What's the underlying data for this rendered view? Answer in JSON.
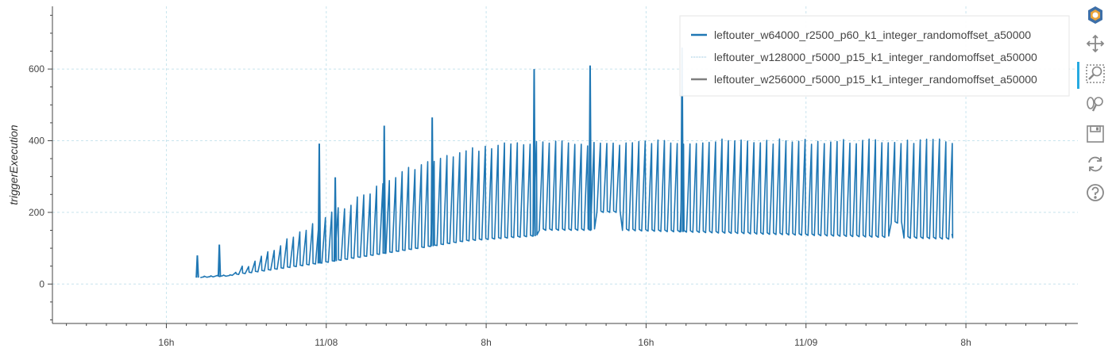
{
  "chart_data": {
    "type": "line",
    "ylabel": "triggerExecution",
    "xlabel": "",
    "x_tick_labels": [
      "16h",
      "11/08",
      "8h",
      "16h",
      "11/09",
      "8h"
    ],
    "x_ticks_hours": [
      16,
      24,
      32,
      40,
      48,
      56
    ],
    "xlim_hours": [
      10.3,
      61.6
    ],
    "y_ticks": [
      0,
      200,
      400,
      600
    ],
    "ylim": [
      -110,
      775
    ],
    "grid": true,
    "legend_position": "top-right",
    "series": [
      {
        "name": "leftouter_w64000_r2500_p60_k1_integer_randomoffset_a50000",
        "color": "#1f77b4",
        "style": "solid",
        "data_range_hours": [
          17.7,
          55.3
        ],
        "oscillation_period_hours": 0.32,
        "baseline_envelope": [
          [
            17.7,
            18
          ],
          [
            19,
            22
          ],
          [
            24,
            60
          ],
          [
            31,
            120
          ],
          [
            36,
            140
          ],
          [
            38.6,
            150
          ],
          [
            55.3,
            125
          ]
        ],
        "peak_envelope": [
          [
            17.7,
            20
          ],
          [
            19,
            30
          ],
          [
            24,
            200
          ],
          [
            28,
            330
          ],
          [
            31,
            380
          ],
          [
            33,
            400
          ],
          [
            38.6,
            400
          ],
          [
            41,
            405
          ],
          [
            55.3,
            405
          ]
        ],
        "step_changes": [
          {
            "hour": 34.5,
            "baseline": 150
          },
          {
            "hour": 37.3,
            "baseline": 200
          },
          {
            "hour": 38.6,
            "baseline": 140
          },
          {
            "hour": 52.2,
            "baseline": 170
          },
          {
            "hour": 52.7,
            "baseline": 130
          }
        ],
        "spikes": [
          {
            "hour": 17.55,
            "value": 80
          },
          {
            "hour": 18.65,
            "value": 110
          },
          {
            "hour": 23.65,
            "value": 392
          },
          {
            "hour": 24.45,
            "value": 298
          },
          {
            "hour": 26.9,
            "value": 442
          },
          {
            "hour": 29.3,
            "value": 465
          },
          {
            "hour": 34.4,
            "value": 600
          },
          {
            "hour": 37.2,
            "value": 610
          },
          {
            "hour": 41.8,
            "value": 660
          }
        ],
        "end_value": 140
      },
      {
        "name": "leftouter_w128000_r5000_p15_k1_integer_randomoffset_a50000",
        "color": "#9ecae1",
        "style": "dotted",
        "points": []
      },
      {
        "name": "leftouter_w256000_r5000_p15_k1_integer_randomoffset_a50000",
        "color": "#7f7f7f",
        "style": "solid",
        "points": []
      }
    ]
  },
  "toolbar": {
    "tools": [
      "bokeh-logo-icon",
      "pan-icon",
      "box-zoom-icon",
      "wheel-zoom-icon",
      "save-icon",
      "reset-icon",
      "help-icon"
    ],
    "active_tool": "box-zoom-icon",
    "accent_color": "#26aae1"
  }
}
